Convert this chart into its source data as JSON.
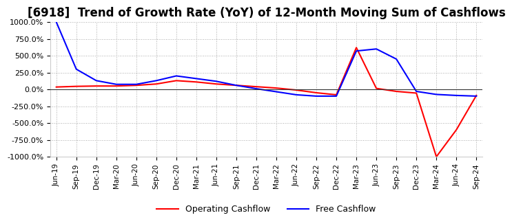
{
  "title": "[6918]  Trend of Growth Rate (YoY) of 12-Month Moving Sum of Cashflows",
  "ylim": [
    -1000,
    1000
  ],
  "yticks": [
    1000,
    750,
    500,
    250,
    0,
    -250,
    -500,
    -750,
    -1000
  ],
  "ytick_labels": [
    "1000.0%",
    "750.0%",
    "500.0%",
    "250.0%",
    "0.0%",
    "-250.0%",
    "-500.0%",
    "-750.0%",
    "-1000.0%"
  ],
  "x_labels": [
    "Jun-19",
    "Sep-19",
    "Dec-19",
    "Mar-20",
    "Jun-20",
    "Sep-20",
    "Dec-20",
    "Mar-21",
    "Jun-21",
    "Sep-21",
    "Dec-21",
    "Mar-22",
    "Jun-22",
    "Sep-22",
    "Dec-22",
    "Mar-23",
    "Jun-23",
    "Sep-23",
    "Dec-23",
    "Mar-24",
    "Jun-24",
    "Sep-24"
  ],
  "operating_cashflow": [
    35,
    45,
    50,
    50,
    60,
    80,
    130,
    110,
    80,
    60,
    40,
    20,
    -10,
    -50,
    -80,
    620,
    15,
    -30,
    -55,
    -1000,
    -600,
    -90
  ],
  "free_cashflow": [
    1000,
    300,
    130,
    75,
    75,
    130,
    200,
    160,
    120,
    60,
    10,
    -35,
    -80,
    -100,
    -100,
    570,
    600,
    450,
    -30,
    -75,
    -90,
    -100
  ],
  "operating_color": "#ff0000",
  "free_color": "#0000ff",
  "bg_color": "#ffffff",
  "title_fontsize": 12,
  "legend_labels": [
    "Operating Cashflow",
    "Free Cashflow"
  ]
}
